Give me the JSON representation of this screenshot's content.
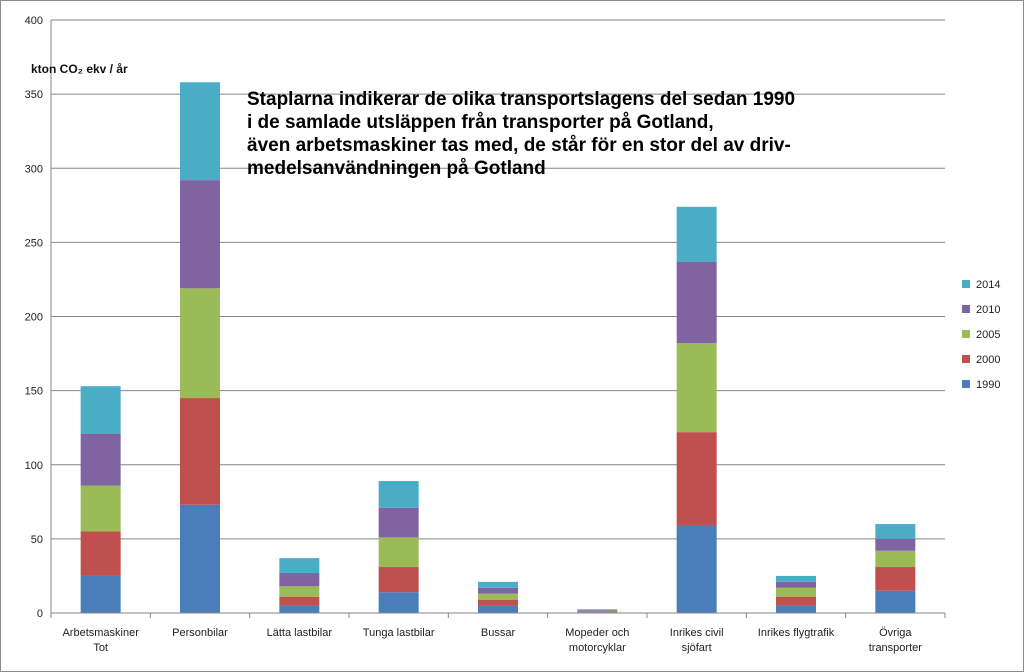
{
  "chart_data": {
    "type": "bar",
    "stacked": true,
    "ylabel": "kton CO₂ ekv / år",
    "ylim": [
      0,
      400
    ],
    "yticks": [
      0,
      50,
      100,
      150,
      200,
      250,
      300,
      350,
      400
    ],
    "grid": true,
    "legend": "right",
    "annotation": [
      "Staplarna indikerar de olika transportslagens del sedan 1990",
      "i  de samlade utsläppen från transporter på Gotland,",
      "även arbetsmaskiner tas med, de står för en stor del av driv-",
      "medelsanvändningen på Gotland"
    ],
    "categories": [
      [
        "Arbetsmaskiner",
        "Tot"
      ],
      [
        "Personbilar"
      ],
      [
        "Lätta lastbilar"
      ],
      [
        "Tunga lastbilar"
      ],
      [
        "Bussar"
      ],
      [
        "Mopeder och",
        "motorcyklar"
      ],
      [
        "Inrikes civil",
        "sjöfart"
      ],
      [
        "Inrikes flygtrafik"
      ],
      [
        "Övriga",
        "transporter"
      ]
    ],
    "series": [
      {
        "name": "1990",
        "color": "#4a7ebb",
        "values": [
          25,
          73,
          5,
          14,
          5,
          0.5,
          59,
          5,
          15
        ]
      },
      {
        "name": "2000",
        "color": "#c0504d",
        "values": [
          30,
          72,
          6,
          17,
          4,
          0.5,
          63,
          6,
          16
        ]
      },
      {
        "name": "2005",
        "color": "#9bbb59",
        "values": [
          31,
          74,
          7,
          20,
          4,
          0.5,
          60,
          6,
          11
        ]
      },
      {
        "name": "2010",
        "color": "#8064a2",
        "values": [
          35,
          73,
          9,
          20,
          4,
          0.5,
          55,
          4,
          8
        ]
      },
      {
        "name": "2014",
        "color": "#4bacc6",
        "values": [
          32,
          66,
          10,
          18,
          4,
          0.5,
          37,
          4,
          10
        ]
      }
    ]
  }
}
